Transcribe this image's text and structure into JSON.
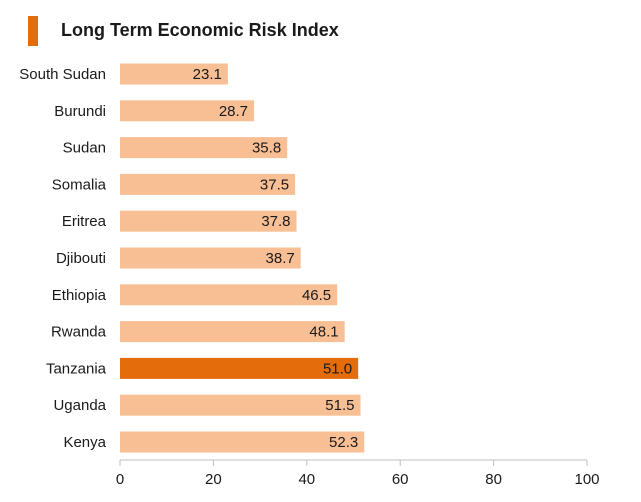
{
  "chart_data": {
    "type": "bar",
    "orientation": "horizontal",
    "title": "Long Term Economic Risk Index",
    "categories": [
      "South Sudan",
      "Burundi",
      "Sudan",
      "Somalia",
      "Eritrea",
      "Djibouti",
      "Ethiopia",
      "Rwanda",
      "Tanzania",
      "Uganda",
      "Kenya"
    ],
    "values": [
      23.1,
      28.7,
      35.8,
      37.5,
      37.8,
      38.7,
      46.5,
      48.1,
      51.0,
      51.5,
      52.3
    ],
    "value_labels": [
      "23.1",
      "28.7",
      "35.8",
      "37.5",
      "37.8",
      "38.7",
      "46.5",
      "48.1",
      "51.0",
      "51.5",
      "52.3"
    ],
    "highlight": "Tanzania",
    "xlim": [
      0,
      100
    ],
    "xticks": [
      0,
      20,
      40,
      60,
      80,
      100
    ],
    "xtick_labels": [
      "0",
      "20",
      "40",
      "60",
      "80",
      "100"
    ],
    "xlabel": "",
    "ylabel": "",
    "grid": false,
    "legend": "none"
  },
  "colors": {
    "bar": "#f8bf94",
    "highlight": "#e46c0a",
    "title_marker": "#e46c0a",
    "axis": "#bfbfbf",
    "text": "#1a1a1a"
  }
}
